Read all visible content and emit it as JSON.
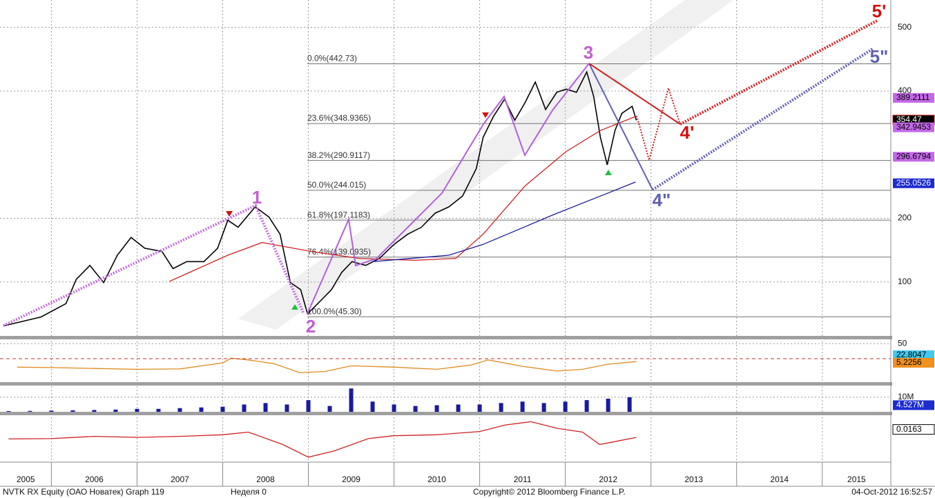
{
  "chart_data": [
    {
      "type": "line",
      "xlim": [
        2005.4,
        2015.8
      ],
      "ylim": [
        25,
        543
      ],
      "yticks": [
        100,
        200,
        400,
        500
      ],
      "grid": true,
      "xticks": [
        {
          "value": 2005,
          "label": "2005"
        },
        {
          "value": 2006,
          "label": "2006"
        },
        {
          "value": 2007,
          "label": "2007"
        },
        {
          "value": 2008,
          "label": "2008"
        },
        {
          "value": 2009,
          "label": "2009"
        },
        {
          "value": 2010,
          "label": "2010"
        },
        {
          "value": 2011,
          "label": "2011"
        },
        {
          "value": 2012,
          "label": "2012"
        },
        {
          "value": 2013,
          "label": "2013"
        },
        {
          "value": 2014,
          "label": "2014"
        },
        {
          "value": 2015,
          "label": "2015"
        }
      ],
      "series": [
        {
          "color": "#000000",
          "x": [
            2005.44,
            2005.88,
            2006.17,
            2006.29,
            2006.45,
            2006.61,
            2006.77,
            2006.93,
            2007.09,
            2007.29,
            2007.42,
            2007.58,
            2007.78,
            2007.94,
            2008.06,
            2008.18,
            2008.38,
            2008.54,
            2008.67,
            2008.79,
            2008.91,
            2008.99,
            2009.11,
            2009.27,
            2009.39,
            2009.51,
            2009.67,
            2009.83,
            2010.0,
            2010.16,
            2010.32,
            2010.48,
            2010.64,
            2010.8,
            2010.96,
            2011.04,
            2011.16,
            2011.29,
            2011.41,
            2011.53,
            2011.65,
            2011.77,
            2011.9,
            2012.01,
            2012.13,
            2012.25,
            2012.33,
            2012.41,
            2012.49,
            2012.58,
            2012.66,
            2012.78,
            2012.83
          ],
          "values": [
            31,
            45,
            66,
            104,
            126,
            99,
            142,
            170,
            153,
            148,
            121,
            132,
            132,
            153,
            197,
            186,
            218,
            202,
            175,
            99,
            88,
            50,
            66,
            88,
            115,
            132,
            126,
            137,
            159,
            175,
            186,
            208,
            218,
            235,
            278,
            327,
            360,
            387,
            354,
            382,
            414,
            371,
            398,
            403,
            398,
            430,
            392,
            327,
            284,
            338,
            365,
            376,
            354
          ]
        },
        {
          "color": "#d02020",
          "x": [
            2007.38,
            2008.06,
            2008.46,
            2009.03,
            2009.59,
            2010.24,
            2010.72,
            2011.04,
            2011.53,
            2012.01,
            2012.41,
            2012.82
          ],
          "values": [
            101,
            142,
            162,
            148,
            137,
            134,
            137,
            175,
            251,
            305,
            338,
            360
          ]
        },
        {
          "color": "#1a1aa0",
          "x": [
            2009.75,
            2010.64,
            2011.04,
            2011.85,
            2012.41,
            2012.82
          ],
          "values": [
            132,
            142,
            159,
            205,
            235,
            257
          ]
        }
      ],
      "fib": [
        {
          "value": 442.73,
          "label": "0.0%(442.73)"
        },
        {
          "value": 348.9365,
          "label": "23.6%(348.9365)"
        },
        {
          "value": 290.9117,
          "label": "38.2%(290.9117)"
        },
        {
          "value": 244.015,
          "label": "50.0%(244.015)"
        },
        {
          "value": 197.1183,
          "label": "61.8%(197.1183)"
        },
        {
          "value": 139.0935,
          "label": "76.4%(139.0935)"
        },
        {
          "value": 45.3,
          "label": "100.0%(45.30)"
        }
      ],
      "tags": [
        {
          "value": 389.2111,
          "color": "#c468e8"
        },
        {
          "value": 354.47,
          "color": "#000000"
        },
        {
          "value": 342.9453,
          "color": "#c468e8"
        },
        {
          "value": 296.6794,
          "color": "#c468e8"
        },
        {
          "value": 255.0526,
          "color": "#1c2ccf"
        }
      ],
      "wave_labels": [
        "1",
        "2",
        "3",
        "4'",
        "4\"",
        "5'",
        "5\""
      ]
    },
    {
      "type": "line",
      "xlim": [
        2005.4,
        2015.8
      ],
      "ylim": [
        -40,
        60
      ],
      "yticks": [
        50
      ],
      "series": [
        {
          "color": "#e08a1e",
          "x": [
            2005.6,
            2006.0,
            2006.5,
            2007.0,
            2007.5,
            2008.0,
            2008.1,
            2008.3,
            2008.6,
            2008.9,
            2009.2,
            2009.5,
            2010.0,
            2010.5,
            2010.9,
            2011.1,
            2011.5,
            2011.9,
            2012.2,
            2012.5,
            2012.83
          ],
          "values": [
            -5,
            -6,
            -8,
            -10,
            -9,
            5,
            16,
            12,
            3,
            -18,
            -15,
            -2,
            -5,
            -10,
            0,
            12,
            -3,
            -14,
            -10,
            2,
            8
          ]
        }
      ],
      "tags": [
        {
          "value": 22.8047,
          "color": "#40c8f0"
        },
        {
          "value": 5.2256,
          "color": "#f0901e"
        }
      ]
    },
    {
      "type": "bar",
      "xlim": [
        2005.4,
        2015.8
      ],
      "ylim": [
        0,
        18
      ],
      "yticks": [
        {
          "value": 10,
          "label": "10M"
        }
      ],
      "color": "#1a1aa0",
      "x": [
        2005.5,
        2005.75,
        2006.0,
        2006.25,
        2006.5,
        2006.75,
        2007.0,
        2007.25,
        2007.5,
        2007.75,
        2008.0,
        2008.25,
        2008.5,
        2008.75,
        2009.0,
        2009.25,
        2009.5,
        2009.75,
        2010.0,
        2010.25,
        2010.5,
        2010.75,
        2011.0,
        2011.25,
        2011.5,
        2011.75,
        2012.0,
        2012.25,
        2012.5,
        2012.75
      ],
      "values": [
        0.5,
        0.6,
        0.8,
        1.0,
        1.2,
        1.5,
        2,
        2,
        2.5,
        3,
        3.5,
        5,
        6,
        5,
        8,
        4,
        16,
        7,
        5,
        4,
        4.5,
        5,
        5,
        6,
        7,
        6,
        7,
        8,
        9,
        10
      ],
      "tags": [
        {
          "value": 4.527,
          "label": "4.527M",
          "color": "#1c2ccf"
        }
      ]
    },
    {
      "type": "line",
      "xlim": [
        2005.4,
        2015.8
      ],
      "ylim": [
        -0.08,
        0.06
      ],
      "yticks": [],
      "series": [
        {
          "color": "#d02020",
          "x": [
            2005.5,
            2006.0,
            2006.5,
            2007.0,
            2007.5,
            2008.0,
            2008.3,
            2008.7,
            2009.0,
            2009.3,
            2009.7,
            2010.0,
            2010.5,
            2011.0,
            2011.3,
            2011.6,
            2011.9,
            2012.2,
            2012.4,
            2012.6,
            2012.83
          ],
          "values": [
            -0.013,
            -0.012,
            -0.005,
            -0.008,
            -0.005,
            0.0,
            0.008,
            -0.03,
            -0.069,
            -0.05,
            -0.012,
            -0.003,
            0.0,
            0.01,
            0.03,
            0.04,
            0.02,
            0.008,
            -0.03,
            -0.02,
            -0.008
          ]
        }
      ],
      "tags": [
        {
          "value": 0.0163,
          "color": "#ffffff"
        }
      ]
    }
  ],
  "footer": {
    "left": "NVTK RX Equity (ОАО Новатек) Graph 119",
    "week": "Неделя 0",
    "copyright": "Copyright© 2012 Bloomberg Finance L.P.",
    "date": "04-Oct-2012 16:52:57"
  }
}
